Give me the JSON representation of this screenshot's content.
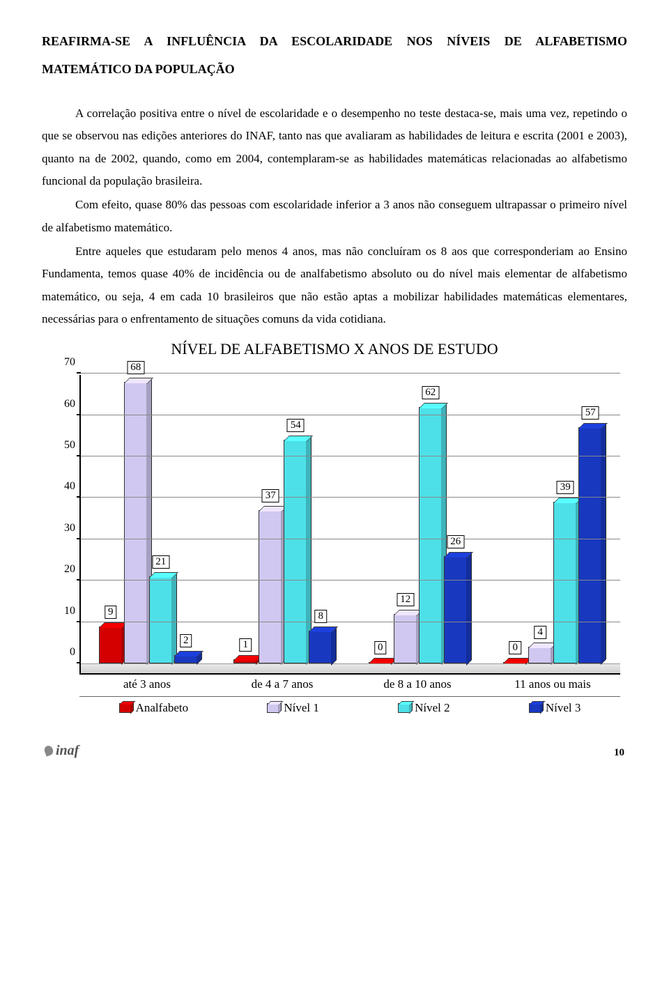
{
  "title": "REAFIRMA-SE A INFLUÊNCIA DA ESCOLARIDADE NOS NÍVEIS DE ALFABETISMO MATEMÁTICO DA POPULAÇÃO",
  "paragraphs": [
    "A correlação positiva entre o nível de escolaridade e o desempenho no teste destaca-se, mais uma vez, repetindo o que se observou nas edições anteriores do INAF, tanto nas que avaliaram as habilidades de leitura e escrita (2001 e 2003), quanto na de 2002, quando, como em 2004, contemplaram-se as habilidades matemáticas relacionadas ao alfabetismo funcional da população brasileira.",
    "Com efeito, quase 80% das pessoas com escolaridade inferior a 3 anos não conseguem ultrapassar o primeiro nível de alfabetismo matemático.",
    "Entre aqueles que estudaram pelo menos 4 anos, mas não concluíram os 8 aos que corresponderiam ao Ensino Fundamenta, temos quase 40% de incidência ou de analfabetismo absoluto ou do nível mais elementar de alfabetismo matemático, ou seja, 4 em cada 10 brasileiros que não estão aptas a mobilizar habilidades matemáticas elementares, necessárias para o enfrentamento de situações comuns da vida cotidiana."
  ],
  "chart": {
    "title": "NÍVEL DE ALFABETISMO X ANOS DE ESTUDO",
    "ylim": [
      0,
      70
    ],
    "ytick_step": 10,
    "yticks": [
      0,
      10,
      20,
      30,
      40,
      50,
      60,
      70
    ],
    "categories": [
      "até 3 anos",
      "de 4 a 7 anos",
      "de 8 a 10 anos",
      "11 anos ou mais"
    ],
    "series": [
      {
        "name": "Analfabeto",
        "color": "#d40000",
        "values": [
          9,
          1,
          0,
          0
        ]
      },
      {
        "name": "Nível 1",
        "color": "#d0c8f0",
        "values": [
          68,
          37,
          12,
          4
        ]
      },
      {
        "name": "Nível 2",
        "color": "#4de0e8",
        "values": [
          21,
          54,
          62,
          39
        ]
      },
      {
        "name": "Nível 3",
        "color": "#1838c0",
        "values": [
          2,
          8,
          26,
          57
        ]
      }
    ],
    "grid_color": "#888888",
    "background_color": "#ffffff",
    "bar_border": "#333333"
  },
  "footer": {
    "logo_text": "inaf",
    "page_number": "10"
  }
}
